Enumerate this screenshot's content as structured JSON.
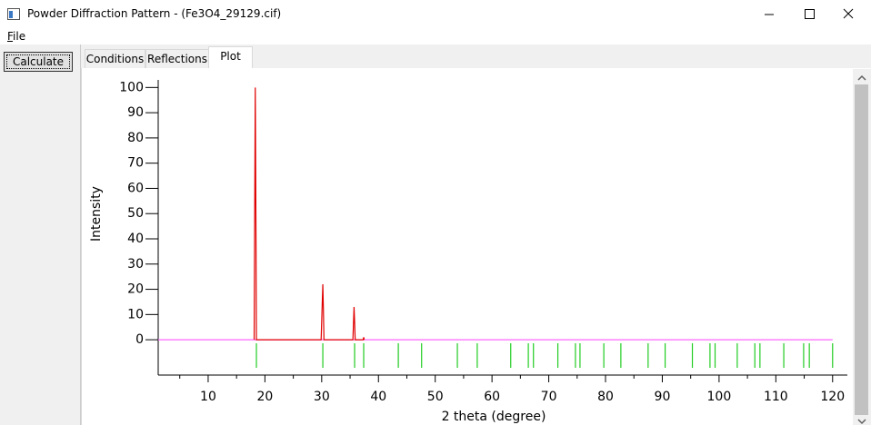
{
  "window": {
    "title": "Powder Diffraction Pattern - (Fe3O4_29129.cif)"
  },
  "menu": [
    "File"
  ],
  "buttons": {
    "calculate": "Calculate"
  },
  "tabs": [
    "Conditions",
    "Reflections",
    "Plot"
  ],
  "chart_data": {
    "type": "line",
    "x_label": "2 theta (degree)",
    "y_label": "Intensity",
    "xlim": [
      1.2,
      122.6
    ],
    "ylim": [
      -14,
      103
    ],
    "xticks": [
      10,
      20,
      30,
      40,
      50,
      60,
      70,
      80,
      90,
      100,
      110,
      120
    ],
    "xminor": [
      5,
      15,
      25,
      35,
      45,
      55,
      65,
      75,
      85,
      95,
      105,
      115
    ],
    "yticks": [
      0,
      10,
      20,
      30,
      40,
      50,
      60,
      70,
      80,
      90,
      100
    ],
    "series": [
      {
        "color": "#ff66ff",
        "x": [
          1.2,
          120
        ],
        "values": [
          0,
          0
        ]
      },
      {
        "color": "#e00000",
        "x": [
          18.1,
          18.3,
          18.4,
          18.5,
          29.9,
          30.2,
          30.3,
          30.4,
          35.5,
          35.7,
          35.8,
          35.9,
          37.3,
          37.4,
          37.5
        ],
        "values": [
          0,
          100,
          55,
          0,
          0,
          22,
          12,
          0,
          0,
          13,
          7,
          0,
          0,
          1,
          0
        ]
      }
    ],
    "reflections": {
      "color": "#22cc22",
      "x": [
        18.5,
        30.2,
        35.8,
        37.4,
        43.5,
        47.6,
        53.9,
        57.4,
        63.3,
        66.4,
        67.3,
        71.6,
        74.7,
        75.5,
        79.7,
        82.7,
        87.5,
        90.5,
        95.3,
        98.4,
        99.3,
        103.2,
        106.3,
        107.2,
        111.4,
        114.9,
        115.9,
        120.0
      ]
    }
  }
}
